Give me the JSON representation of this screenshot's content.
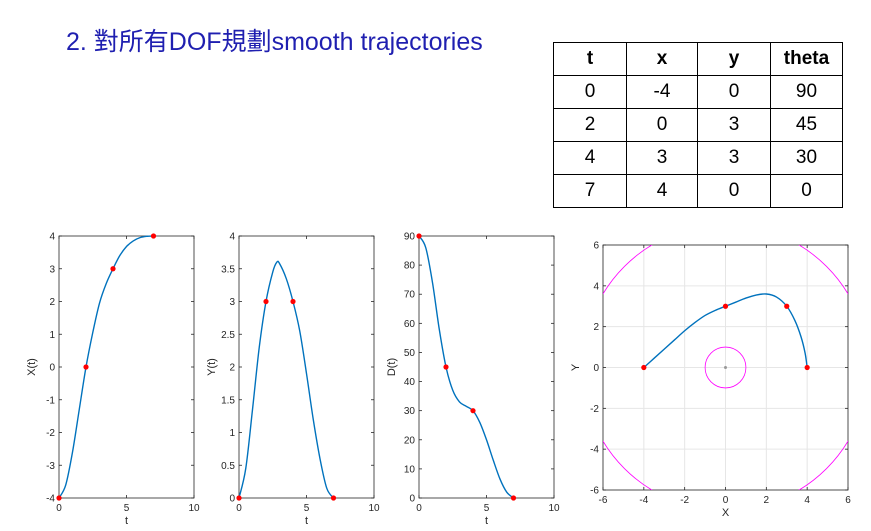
{
  "slide": {
    "title": "2. 對所有DOF規劃smooth trajectories"
  },
  "table": {
    "headers": [
      "t",
      "x",
      "y",
      "theta"
    ],
    "rows": [
      [
        "0",
        "-4",
        "0",
        "90"
      ],
      [
        "2",
        "0",
        "3",
        "45"
      ],
      [
        "4",
        "3",
        "3",
        "30"
      ],
      [
        "7",
        "4",
        "0",
        "0"
      ]
    ]
  },
  "colors": {
    "title": "#1f1fb0",
    "curve": "#0072bd",
    "marker": "#ff0000",
    "circle": "#ff00ff",
    "grid": "#e6e6e6",
    "origin": "#999999"
  },
  "chart_data": [
    {
      "type": "line",
      "xlabel": "t",
      "ylabel": "X(t)",
      "xlim": [
        0,
        10
      ],
      "ylim": [
        -4,
        4
      ],
      "xticks": [
        0,
        5,
        10
      ],
      "yticks": [
        -4,
        -3,
        -2,
        -1,
        0,
        1,
        2,
        3,
        4
      ],
      "curve": {
        "x": [
          0,
          0.5,
          1,
          1.5,
          2,
          2.5,
          3,
          3.5,
          4,
          4.5,
          5,
          5.5,
          6,
          6.5,
          7
        ],
        "y": [
          -4,
          -3.6,
          -2.6,
          -1.3,
          0,
          1.05,
          1.95,
          2.55,
          3,
          3.4,
          3.68,
          3.85,
          3.95,
          3.99,
          4
        ]
      },
      "points": {
        "x": [
          0,
          2,
          4,
          7
        ],
        "y": [
          -4,
          0,
          3,
          4
        ]
      }
    },
    {
      "type": "line",
      "xlabel": "t",
      "ylabel": "Y(t)",
      "xlim": [
        0,
        10
      ],
      "ylim": [
        0,
        4
      ],
      "xticks": [
        0,
        5,
        10
      ],
      "yticks": [
        0,
        0.5,
        1,
        1.5,
        2,
        2.5,
        3,
        3.5,
        4
      ],
      "curve": {
        "x": [
          0,
          0.5,
          1,
          1.5,
          2,
          2.5,
          2.8,
          3,
          3.5,
          4,
          4.5,
          5,
          5.5,
          6,
          6.5,
          7
        ],
        "y": [
          0,
          0.45,
          1.35,
          2.3,
          3,
          3.45,
          3.6,
          3.58,
          3.35,
          3,
          2.55,
          1.9,
          1.2,
          0.6,
          0.15,
          0
        ]
      },
      "points": {
        "x": [
          0,
          2,
          4,
          7
        ],
        "y": [
          0,
          3,
          3,
          0
        ]
      }
    },
    {
      "type": "line",
      "xlabel": "t",
      "ylabel": "D(t)",
      "xlim": [
        0,
        10
      ],
      "ylim": [
        0,
        90
      ],
      "xticks": [
        0,
        5,
        10
      ],
      "yticks": [
        0,
        10,
        20,
        30,
        40,
        50,
        60,
        70,
        80,
        90
      ],
      "curve": {
        "x": [
          0,
          0.5,
          1,
          1.5,
          2,
          2.5,
          3,
          3.5,
          4,
          4.5,
          5,
          5.5,
          6,
          6.5,
          7
        ],
        "y": [
          90,
          86,
          74,
          58,
          45,
          37,
          33,
          31.5,
          30,
          26,
          20,
          13,
          6.5,
          2,
          0
        ]
      },
      "points": {
        "x": [
          0,
          2,
          4,
          7
        ],
        "y": [
          90,
          45,
          30,
          0
        ]
      }
    },
    {
      "type": "line",
      "xlabel": "X",
      "ylabel": "Y",
      "xlim": [
        -6,
        6
      ],
      "ylim": [
        -6,
        6
      ],
      "xticks": [
        -6,
        -4,
        -2,
        0,
        2,
        4,
        6
      ],
      "yticks": [
        -6,
        -4,
        -2,
        0,
        2,
        4,
        6
      ],
      "grid": true,
      "curve": {
        "x": [
          -4,
          -3.5,
          -3,
          -2.5,
          -2,
          -1.5,
          -1,
          -0.5,
          0,
          0.5,
          1,
          1.5,
          2,
          2.5,
          3,
          3.4,
          3.7,
          3.9,
          4
        ],
        "y": [
          0,
          0.45,
          0.9,
          1.35,
          1.8,
          2.2,
          2.55,
          2.8,
          3,
          3.2,
          3.4,
          3.55,
          3.6,
          3.45,
          3,
          2.3,
          1.5,
          0.7,
          0
        ]
      },
      "points": {
        "x": [
          -4,
          0,
          3,
          4
        ],
        "y": [
          0,
          3,
          3,
          0
        ]
      },
      "circles": [
        {
          "cx": 0,
          "cy": 0,
          "r": 1
        },
        {
          "cx": 0,
          "cy": 0,
          "r": 7
        }
      ],
      "origin_point": {
        "x": 0,
        "y": 0
      }
    }
  ]
}
